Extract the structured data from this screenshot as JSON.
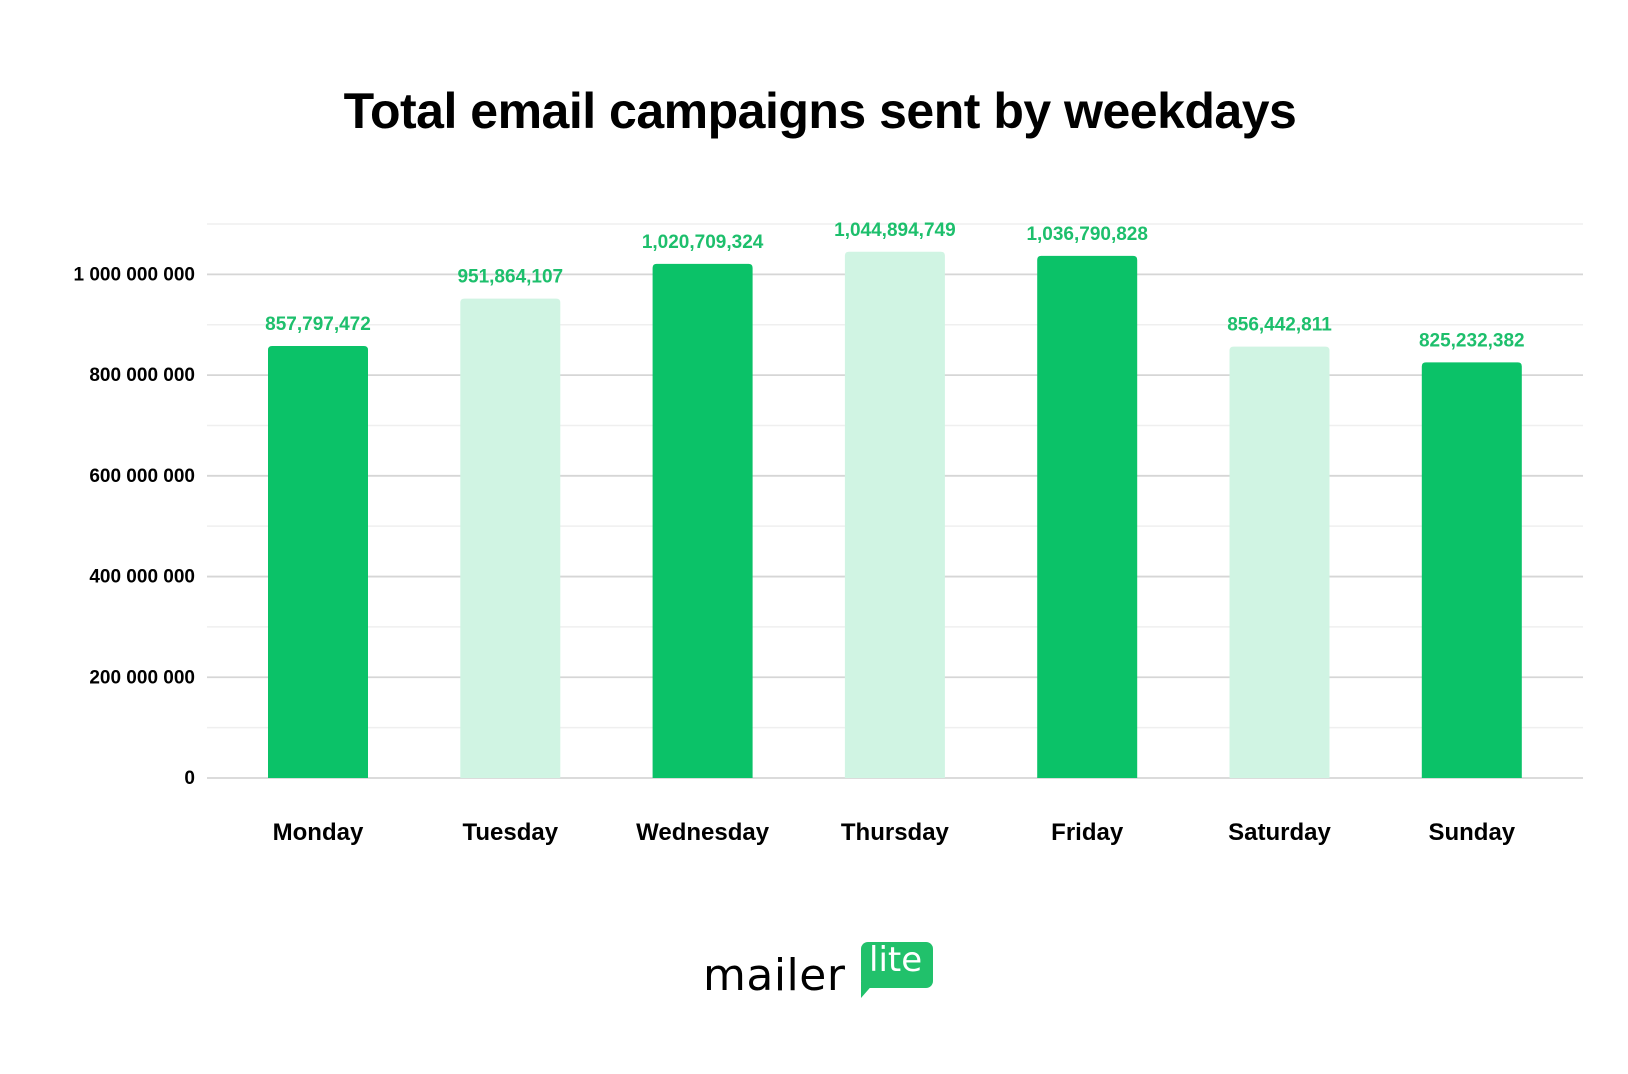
{
  "chart_data": {
    "type": "bar",
    "title": "Total email campaigns sent by weekdays",
    "xlabel": "",
    "ylabel": "",
    "categories": [
      "Monday",
      "Tuesday",
      "Wednesday",
      "Thursday",
      "Friday",
      "Saturday",
      "Sunday"
    ],
    "values": [
      857797472,
      951864107,
      1020709324,
      1044894749,
      1036790828,
      856442811,
      825232382
    ],
    "data_labels": [
      "857,797,472",
      "951,864,107",
      "1,020,709,324",
      "1,044,894,749",
      "1,036,790,828",
      "856,442,811",
      "825,232,382"
    ],
    "ylim": [
      0,
      1100000000
    ],
    "yticks": [
      0,
      200000000,
      400000000,
      600000000,
      800000000,
      1000000000
    ],
    "ytick_labels": [
      "0",
      "200 000 000",
      "400 000 000",
      "600 000 000",
      "800 000 000",
      "1 000 000 000"
    ],
    "grid": true,
    "bar_colors": [
      "#0bc268",
      "#d0f4e3",
      "#0bc268",
      "#d0f4e3",
      "#0bc268",
      "#d0f4e3",
      "#0bc268"
    ],
    "label_color": "#1dbf6c"
  },
  "logo": {
    "text_main": "mailer",
    "text_badge": "lite",
    "brand_color": "#21c16b"
  }
}
